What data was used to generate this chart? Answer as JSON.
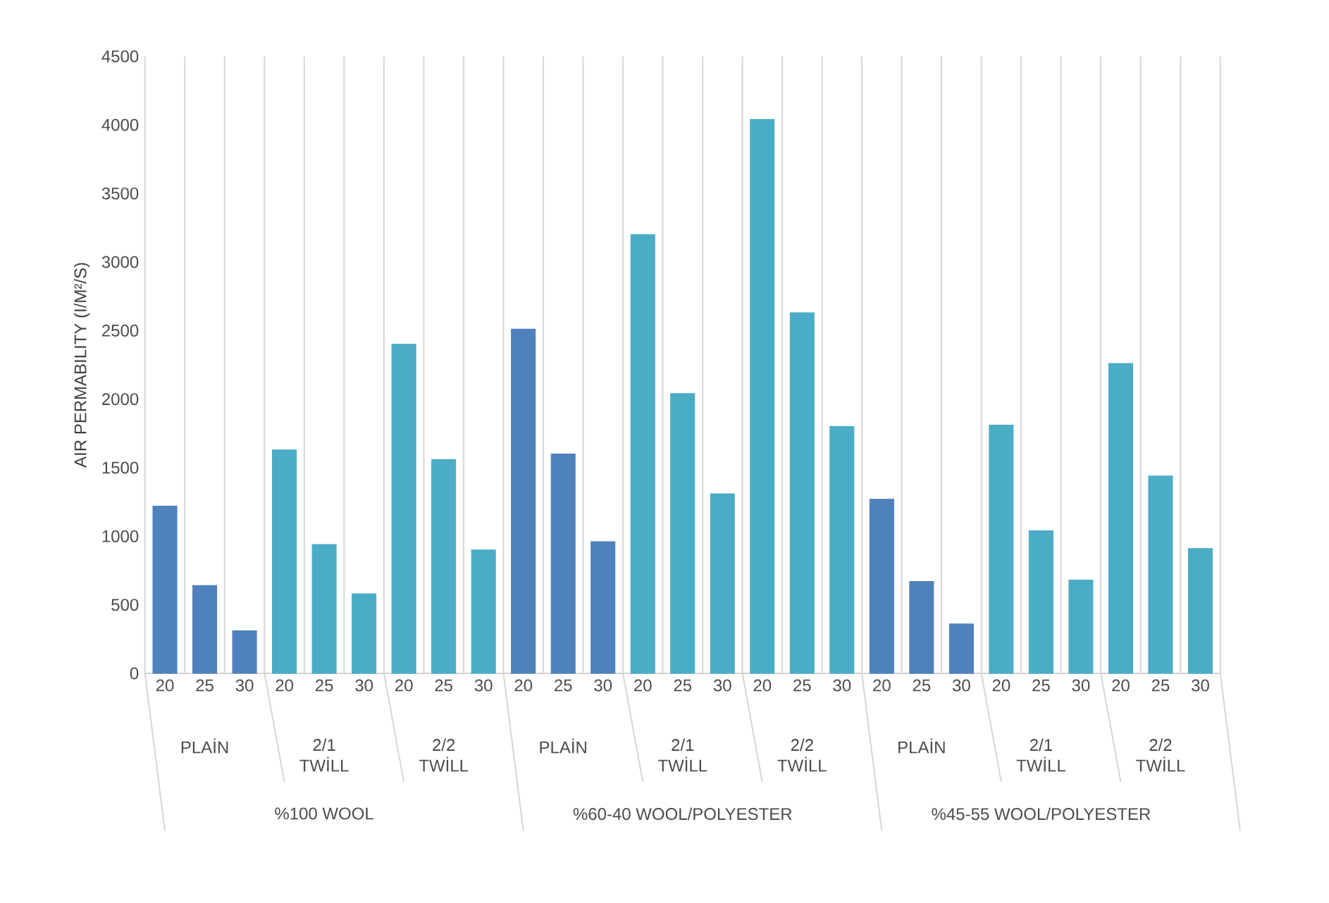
{
  "chart_data": {
    "type": "bar",
    "ylabel": "AIR PERMABILITY (I/M²/S)",
    "categories": [
      "20",
      "25",
      "30",
      "20",
      "25",
      "30",
      "20",
      "25",
      "30",
      "20",
      "25",
      "30",
      "20",
      "25",
      "30",
      "20",
      "25",
      "30",
      "20",
      "25",
      "30",
      "20",
      "25",
      "30",
      "20",
      "25",
      "30"
    ],
    "values": [
      1220,
      640,
      310,
      1630,
      940,
      580,
      2400,
      1560,
      900,
      2510,
      1600,
      960,
      3200,
      2040,
      1310,
      4040,
      2630,
      1800,
      1270,
      670,
      360,
      1810,
      1040,
      680,
      2260,
      1440,
      910
    ],
    "colors": [
      "#4f81bd",
      "#4f81bd",
      "#4f81bd",
      "#4bacc6",
      "#4bacc6",
      "#4bacc6",
      "#4bacc6",
      "#4bacc6",
      "#4bacc6",
      "#4f81bd",
      "#4f81bd",
      "#4f81bd",
      "#4bacc6",
      "#4bacc6",
      "#4bacc6",
      "#4bacc6",
      "#4bacc6",
      "#4bacc6",
      "#4f81bd",
      "#4f81bd",
      "#4f81bd",
      "#4bacc6",
      "#4bacc6",
      "#4bacc6",
      "#4bacc6",
      "#4bacc6",
      "#4bacc6"
    ],
    "ylim": [
      0,
      4500
    ],
    "yticks": [
      0,
      500,
      1000,
      1500,
      2000,
      2500,
      3000,
      3500,
      4000,
      4500
    ],
    "grid": "x",
    "annotations": [
      "PLAİN",
      "2/1 TWİLL",
      "2/2 TWİLL",
      "PLAİN",
      "2/1 TWİLL",
      "2/2 TWİLL",
      "PLAİN",
      "2/1 TWİLL",
      "2/2 TWİLL",
      "%100 WOOL",
      "%60-40 WOOL/POLYESTER",
      "%45-55 WOOL/POLYESTER"
    ]
  }
}
